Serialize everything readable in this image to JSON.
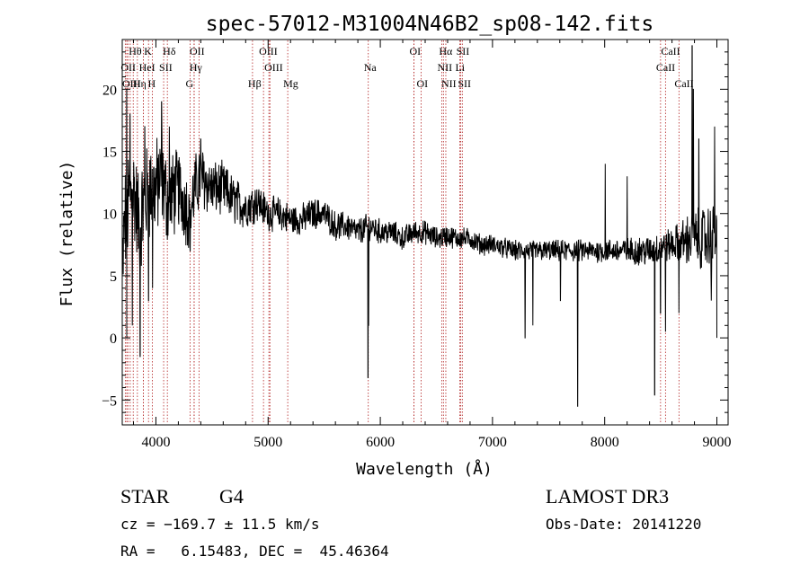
{
  "chart_data": {
    "type": "line",
    "title": "spec-57012-M31004N46B2_sp08-142.fits",
    "xlabel": "Wavelength (Å)",
    "ylabel": "Flux (relative)",
    "xlim": [
      3700,
      9100
    ],
    "ylim": [
      -7,
      24
    ],
    "xticks": [
      4000,
      5000,
      6000,
      7000,
      8000,
      9000
    ],
    "yticks": [
      -5,
      0,
      5,
      10,
      15,
      20
    ],
    "line_color": "#000000",
    "marker_color": "#b22222",
    "spectral_lines": [
      {
        "label": "Hθ",
        "x": 3798,
        "row": 0
      },
      {
        "label": "K",
        "x": 3934,
        "row": 0
      },
      {
        "label": "Hδ",
        "x": 4102,
        "row": 0
      },
      {
        "label": "OII",
        "x": 4341,
        "row": 0
      },
      {
        "label": "OIII",
        "x": 4959,
        "row": 0
      },
      {
        "label": "OI",
        "x": 6300,
        "row": 0
      },
      {
        "label": "Hα",
        "x": 6563,
        "row": 0
      },
      {
        "label": "SII",
        "x": 6717,
        "row": 0
      },
      {
        "label": "CaII",
        "x": 8542,
        "row": 0
      },
      {
        "label": "OII",
        "x": 3727,
        "row": 1
      },
      {
        "label": "HeI",
        "x": 3889,
        "row": 1
      },
      {
        "label": "SII",
        "x": 4069,
        "row": 1
      },
      {
        "label": "Hγ",
        "x": 4340,
        "row": 1
      },
      {
        "label": "OIII",
        "x": 5007,
        "row": 1
      },
      {
        "label": "Na",
        "x": 5893,
        "row": 1
      },
      {
        "label": "NII",
        "x": 6548,
        "row": 1
      },
      {
        "label": "Li",
        "x": 6708,
        "row": 1
      },
      {
        "label": "CaII",
        "x": 8498,
        "row": 1
      },
      {
        "label": "OIII",
        "x": 3740,
        "row": 2
      },
      {
        "label": "Hη",
        "x": 3835,
        "row": 2
      },
      {
        "label": "H",
        "x": 3968,
        "row": 2
      },
      {
        "label": "G",
        "x": 4305,
        "row": 2
      },
      {
        "label": "Hβ",
        "x": 4861,
        "row": 2
      },
      {
        "label": "Mg",
        "x": 5175,
        "row": 2
      },
      {
        "label": "OI",
        "x": 6364,
        "row": 2
      },
      {
        "label": "NII",
        "x": 6584,
        "row": 2
      },
      {
        "label": "SII",
        "x": 6731,
        "row": 2
      },
      {
        "label": "CaII",
        "x": 8662,
        "row": 2
      }
    ],
    "extra_marker_lines": [
      3750,
      3771,
      3889,
      4384,
      5016,
      6300
    ],
    "spectrum_anchors": {
      "x": [
        3700,
        3720,
        3760,
        3800,
        3850,
        3900,
        3950,
        4000,
        4050,
        4100,
        4200,
        4300,
        4350,
        4400,
        4500,
        4600,
        4700,
        4800,
        4900,
        5000,
        5100,
        5200,
        5300,
        5400,
        5500,
        5600,
        5700,
        5800,
        5900,
        6000,
        6100,
        6200,
        6300,
        6400,
        6500,
        6600,
        6700,
        6800,
        6900,
        7000,
        7200,
        7400,
        7600,
        7800,
        8000,
        8200,
        8400,
        8600,
        8800,
        9000
      ],
      "y": [
        5,
        9,
        11,
        12,
        9,
        11,
        12,
        12,
        13,
        11,
        12,
        10,
        12,
        13,
        12,
        12,
        11,
        10.5,
        11,
        10,
        10,
        9.5,
        9.5,
        10,
        10,
        9,
        9,
        8.5,
        9,
        8.5,
        8.5,
        8,
        8.5,
        8.5,
        8,
        8.2,
        8,
        8,
        7.5,
        7.5,
        7,
        7,
        7,
        7,
        7,
        7,
        7,
        7.5,
        8,
        8
      ]
    },
    "noise_amplitude": {
      "x": [
        3700,
        4000,
        4500,
        5000,
        6000,
        7000,
        8000,
        8600,
        8800,
        9000
      ],
      "a": [
        4.0,
        3.5,
        2.0,
        1.2,
        0.9,
        0.7,
        0.8,
        1.2,
        2.0,
        2.6
      ]
    },
    "absorption_features": [
      {
        "x": 3740,
        "y": 0
      },
      {
        "x": 3790,
        "y": 1
      },
      {
        "x": 3860,
        "y": -1.5
      },
      {
        "x": 3935,
        "y": 3
      },
      {
        "x": 3970,
        "y": 4
      },
      {
        "x": 4305,
        "y": 7
      },
      {
        "x": 5891,
        "y": -3.2
      },
      {
        "x": 5895,
        "y": 1
      },
      {
        "x": 7290,
        "y": 0
      },
      {
        "x": 7360,
        "y": 1
      },
      {
        "x": 7605,
        "y": 3
      },
      {
        "x": 7760,
        "y": -5.5
      },
      {
        "x": 8445,
        "y": -4.6
      },
      {
        "x": 8498,
        "y": 2
      },
      {
        "x": 8542,
        "y": 0.5
      },
      {
        "x": 8662,
        "y": 2
      },
      {
        "x": 8950,
        "y": 3
      },
      {
        "x": 9000,
        "y": 0
      }
    ],
    "emission_features": [
      {
        "x": 3740,
        "y": 20
      },
      {
        "x": 3770,
        "y": 18
      },
      {
        "x": 3900,
        "y": 17
      },
      {
        "x": 4050,
        "y": 19
      },
      {
        "x": 4120,
        "y": 17
      },
      {
        "x": 4400,
        "y": 16
      },
      {
        "x": 8005,
        "y": 14
      },
      {
        "x": 8200,
        "y": 13
      },
      {
        "x": 8780,
        "y": 23.5
      },
      {
        "x": 8790,
        "y": 20
      },
      {
        "x": 8840,
        "y": 16
      },
      {
        "x": 8980,
        "y": 17
      }
    ]
  },
  "info": {
    "object_class": "STAR",
    "subclass": "G4",
    "survey": "LAMOST DR3",
    "redshift": "cz = −169.7 ± 11.5 km/s",
    "obs_date": "Obs-Date: 20141220",
    "coords": "RA =   6.15483, DEC =  45.46364"
  }
}
